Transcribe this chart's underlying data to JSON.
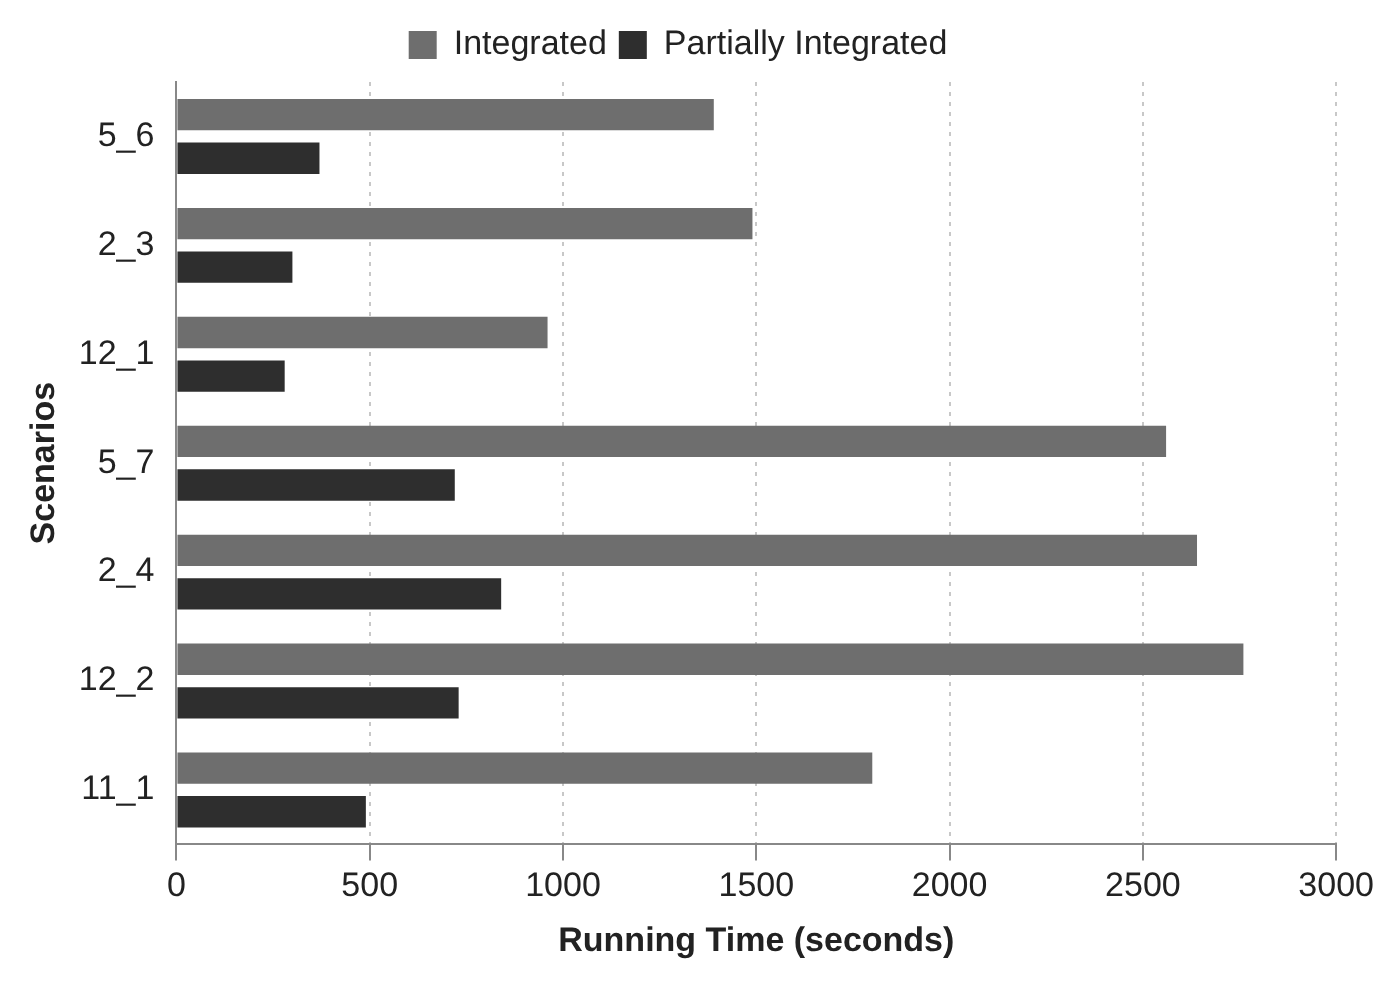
{
  "chart_data": {
    "type": "bar",
    "orientation": "horizontal",
    "xlabel": "Running Time (seconds)",
    "ylabel": "Scenarios",
    "categories": [
      "5_6",
      "2_3",
      "12_1",
      "5_7",
      "2_4",
      "12_2",
      "11_1"
    ],
    "series": [
      {
        "name": "Integrated",
        "color": "#6e6e6e",
        "values": [
          1390,
          1490,
          960,
          2560,
          2640,
          2760,
          1800
        ]
      },
      {
        "name": "Partially Integrated",
        "color": "#2e2e2e",
        "values": [
          370,
          300,
          280,
          720,
          840,
          730,
          490
        ]
      }
    ],
    "xlim": [
      0,
      3000
    ],
    "xticks": [
      0,
      500,
      1000,
      1500,
      2000,
      2500,
      3000
    ],
    "grid": "x",
    "legend": "top"
  }
}
